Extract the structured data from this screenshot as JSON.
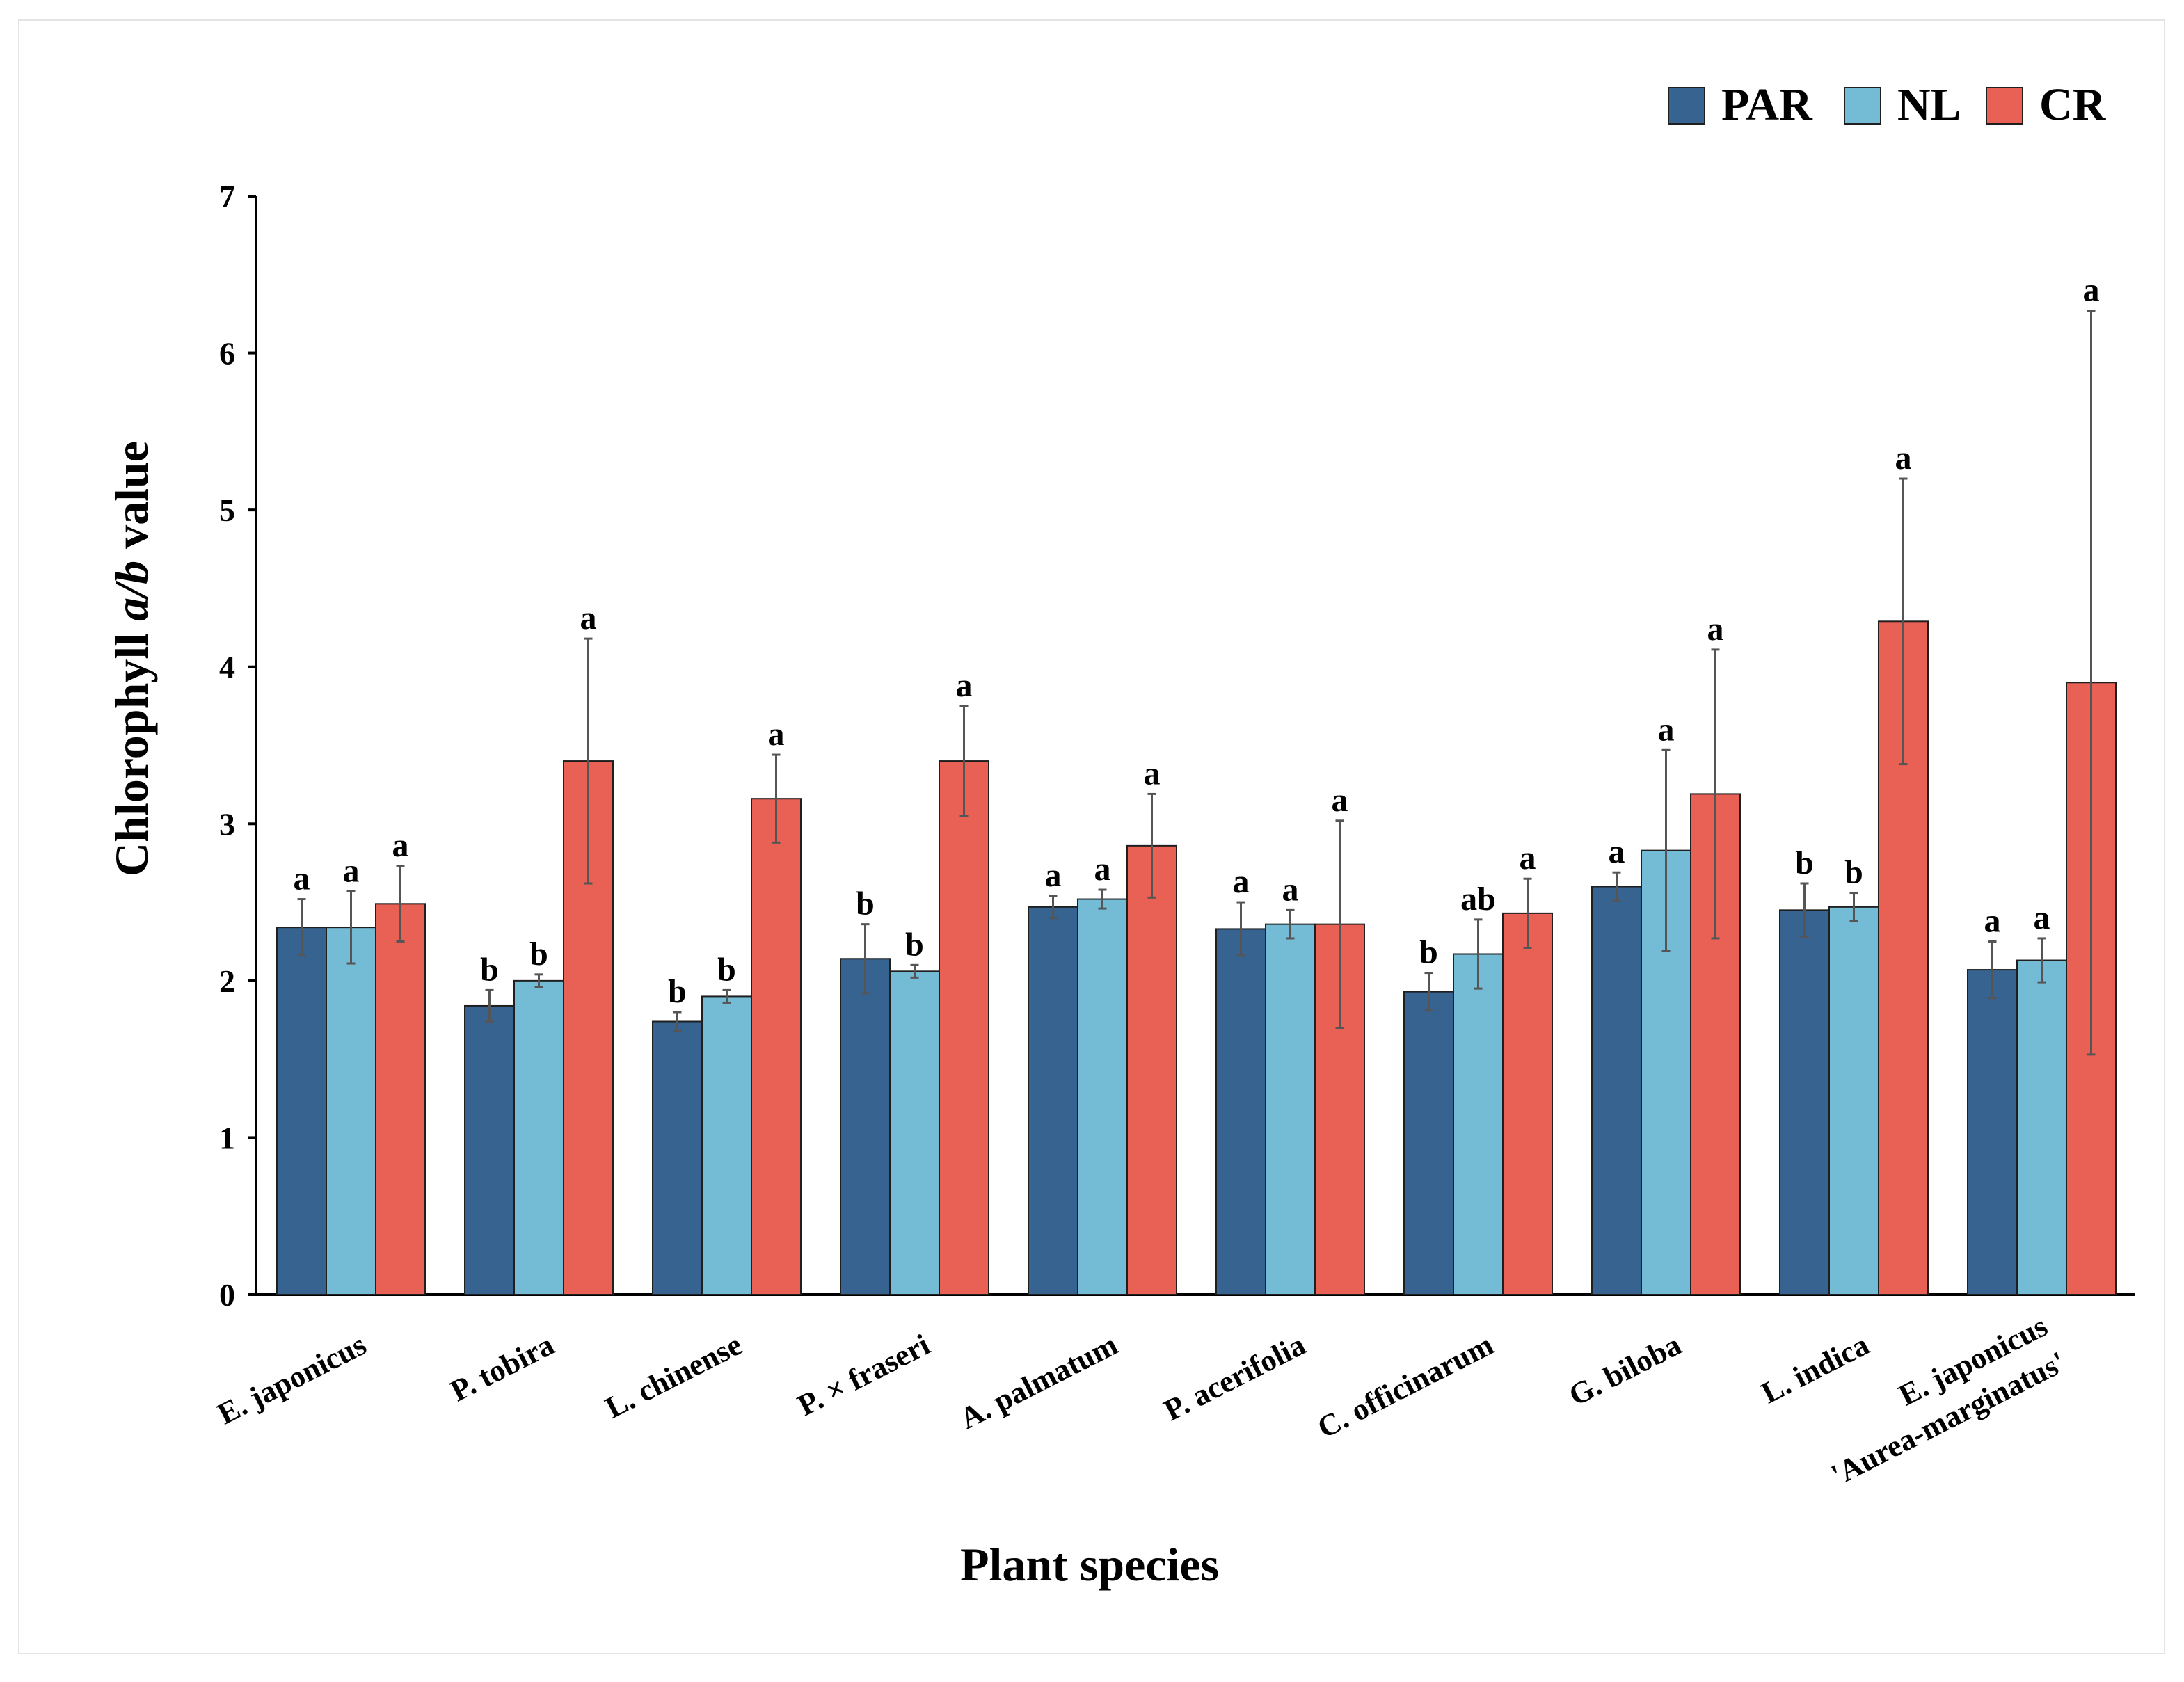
{
  "chart_data": {
    "type": "bar",
    "title": "",
    "xlabel": "Plant species",
    "ylabel_parts": [
      "Chlorophyll ",
      "a/b",
      " value"
    ],
    "ylim": [
      0,
      7
    ],
    "yticks": [
      "0",
      "1",
      "2",
      "3",
      "4",
      "5",
      "6",
      "7"
    ],
    "legend_position": "top-right",
    "categories": [
      [
        "E. japonicus"
      ],
      [
        "P. tobira"
      ],
      [
        "L. chinense"
      ],
      [
        "P. × fraseri"
      ],
      [
        "A. palmatum"
      ],
      [
        "P. acerifolia"
      ],
      [
        "C. officinarum"
      ],
      [
        "G. biloba"
      ],
      [
        "L. indica"
      ],
      [
        "E. japonicus",
        "'Aurea-marginatus'"
      ]
    ],
    "series": [
      {
        "name": "PAR",
        "color": "#376391",
        "values": [
          2.34,
          1.84,
          1.74,
          2.14,
          2.47,
          2.33,
          1.93,
          2.6,
          2.45,
          2.07
        ],
        "errors": [
          0.18,
          0.1,
          0.06,
          0.22,
          0.07,
          0.17,
          0.12,
          0.09,
          0.17,
          0.18
        ],
        "letters": [
          "a",
          "b",
          "b",
          "b",
          "a",
          "a",
          "b",
          "a",
          "b",
          "a"
        ]
      },
      {
        "name": "NL",
        "color": "#74bcd6",
        "values": [
          2.34,
          2.0,
          1.9,
          2.06,
          2.52,
          2.36,
          2.17,
          2.83,
          2.47,
          2.13
        ],
        "errors": [
          0.23,
          0.04,
          0.04,
          0.04,
          0.06,
          0.09,
          0.22,
          0.64,
          0.09,
          0.14
        ],
        "letters": [
          "a",
          "b",
          "b",
          "b",
          "a",
          "a",
          "ab",
          "a",
          "b",
          "a"
        ]
      },
      {
        "name": "CR",
        "color": "#e86154",
        "values": [
          2.49,
          3.4,
          3.16,
          3.4,
          2.86,
          2.36,
          2.43,
          3.19,
          4.29,
          3.9
        ],
        "errors": [
          0.24,
          0.78,
          0.28,
          0.35,
          0.33,
          0.66,
          0.22,
          0.92,
          0.91,
          2.37
        ],
        "letters": [
          "a",
          "a",
          "a",
          "a",
          "a",
          "a",
          "a",
          "a",
          "a",
          "a"
        ]
      }
    ]
  }
}
